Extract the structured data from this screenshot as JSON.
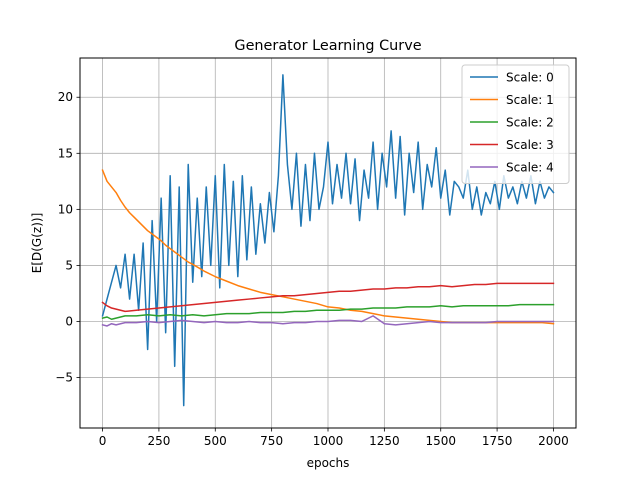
{
  "chart_data": {
    "type": "line",
    "title": "Generator Learning Curve",
    "xlabel": "epochs",
    "ylabel": "E[D(G(z))]",
    "xlim": [
      -100,
      2100
    ],
    "ylim": [
      -9.5,
      23.5
    ],
    "xticks": [
      0,
      250,
      500,
      750,
      1000,
      1250,
      1500,
      1750,
      2000
    ],
    "xtick_labels": [
      "0",
      "250",
      "500",
      "750",
      "1000",
      "1250",
      "1500",
      "1750",
      "2000"
    ],
    "yticks": [
      -5,
      0,
      5,
      10,
      15,
      20
    ],
    "ytick_labels": [
      "−5",
      "0",
      "5",
      "10",
      "15",
      "20"
    ],
    "grid": true,
    "legend": "top-right",
    "series": [
      {
        "name": "Scale: 0",
        "color": "#1f77b4",
        "x": [
          0,
          20,
          40,
          60,
          80,
          100,
          120,
          140,
          160,
          180,
          200,
          220,
          240,
          260,
          280,
          300,
          320,
          340,
          360,
          380,
          400,
          420,
          440,
          460,
          480,
          500,
          520,
          540,
          560,
          580,
          600,
          620,
          640,
          660,
          680,
          700,
          720,
          740,
          760,
          780,
          800,
          820,
          840,
          860,
          880,
          900,
          920,
          940,
          960,
          980,
          1000,
          1020,
          1040,
          1060,
          1080,
          1100,
          1120,
          1140,
          1160,
          1180,
          1200,
          1220,
          1240,
          1260,
          1280,
          1300,
          1320,
          1340,
          1360,
          1380,
          1400,
          1420,
          1440,
          1460,
          1480,
          1500,
          1520,
          1540,
          1560,
          1580,
          1600,
          1620,
          1640,
          1660,
          1680,
          1700,
          1720,
          1740,
          1760,
          1780,
          1800,
          1820,
          1840,
          1860,
          1880,
          1900,
          1920,
          1940,
          1960,
          1980,
          2000
        ],
        "y": [
          0.5,
          2.0,
          3.5,
          5.0,
          3.0,
          6.0,
          2.0,
          6.0,
          1.0,
          7.0,
          -2.5,
          9.0,
          0.0,
          11.0,
          -1.0,
          13.0,
          -4.0,
          12.0,
          -7.5,
          14.0,
          3.5,
          11.0,
          4.0,
          12.0,
          5.0,
          13.0,
          3.0,
          14.0,
          5.0,
          12.5,
          4.0,
          13.0,
          5.5,
          12.0,
          6.0,
          10.5,
          7.0,
          11.5,
          8.0,
          13.0,
          22.0,
          14.0,
          10.0,
          15.0,
          8.5,
          14.0,
          9.0,
          15.0,
          10.0,
          12.0,
          16.0,
          10.5,
          14.0,
          11.0,
          15.0,
          10.5,
          14.5,
          9.0,
          13.5,
          11.0,
          16.0,
          10.0,
          15.0,
          12.0,
          17.0,
          11.0,
          16.5,
          9.5,
          15.0,
          11.5,
          16.0,
          10.0,
          14.0,
          12.0,
          15.5,
          11.0,
          13.5,
          9.5,
          12.5,
          12.0,
          11.0,
          13.5,
          10.0,
          12.0,
          9.5,
          11.5,
          10.5,
          12.5,
          10.0,
          13.0,
          11.0,
          12.0,
          10.5,
          12.5,
          11.0,
          13.0,
          10.5,
          12.5,
          11.0,
          12.0,
          11.5
        ]
      },
      {
        "name": "Scale: 1",
        "color": "#ff7f0e",
        "x": [
          0,
          20,
          40,
          60,
          80,
          100,
          120,
          140,
          160,
          180,
          200,
          220,
          240,
          260,
          280,
          300,
          320,
          340,
          360,
          380,
          400,
          450,
          500,
          550,
          600,
          650,
          700,
          750,
          800,
          850,
          900,
          950,
          1000,
          1050,
          1100,
          1150,
          1200,
          1250,
          1300,
          1350,
          1400,
          1450,
          1500,
          1550,
          1600,
          1650,
          1700,
          1750,
          1800,
          1850,
          1900,
          1950,
          2000
        ],
        "y": [
          13.5,
          12.5,
          12.0,
          11.5,
          10.8,
          10.2,
          9.7,
          9.3,
          8.9,
          8.5,
          8.1,
          7.8,
          7.5,
          7.2,
          6.8,
          6.5,
          6.2,
          5.9,
          5.6,
          5.3,
          5.1,
          4.5,
          4.0,
          3.6,
          3.2,
          2.9,
          2.6,
          2.4,
          2.2,
          2.0,
          1.8,
          1.6,
          1.3,
          1.2,
          1.0,
          0.9,
          0.7,
          0.5,
          0.4,
          0.3,
          0.2,
          0.1,
          0.0,
          -0.1,
          -0.1,
          -0.1,
          -0.1,
          -0.1,
          -0.1,
          -0.1,
          -0.1,
          -0.1,
          -0.2
        ]
      },
      {
        "name": "Scale: 2",
        "color": "#2ca02c",
        "x": [
          0,
          20,
          40,
          60,
          80,
          100,
          150,
          200,
          250,
          300,
          350,
          400,
          450,
          500,
          550,
          600,
          650,
          700,
          750,
          800,
          850,
          900,
          950,
          1000,
          1050,
          1100,
          1150,
          1200,
          1250,
          1300,
          1350,
          1400,
          1450,
          1500,
          1550,
          1600,
          1650,
          1700,
          1750,
          1800,
          1850,
          1900,
          1950,
          2000
        ],
        "y": [
          0.3,
          0.4,
          0.2,
          0.3,
          0.4,
          0.5,
          0.5,
          0.6,
          0.5,
          0.6,
          0.5,
          0.6,
          0.5,
          0.6,
          0.7,
          0.7,
          0.7,
          0.8,
          0.8,
          0.8,
          0.9,
          0.9,
          1.0,
          1.0,
          1.0,
          1.1,
          1.1,
          1.2,
          1.2,
          1.2,
          1.3,
          1.3,
          1.3,
          1.4,
          1.3,
          1.4,
          1.4,
          1.4,
          1.4,
          1.4,
          1.5,
          1.5,
          1.5,
          1.5
        ]
      },
      {
        "name": "Scale: 3",
        "color": "#d62728",
        "x": [
          0,
          20,
          40,
          60,
          80,
          100,
          150,
          200,
          250,
          300,
          350,
          400,
          450,
          500,
          550,
          600,
          650,
          700,
          750,
          800,
          850,
          900,
          950,
          1000,
          1050,
          1100,
          1150,
          1200,
          1250,
          1300,
          1350,
          1400,
          1450,
          1500,
          1550,
          1600,
          1650,
          1700,
          1750,
          1800,
          1850,
          1900,
          1950,
          2000
        ],
        "y": [
          1.7,
          1.4,
          1.2,
          1.1,
          1.0,
          0.9,
          1.0,
          1.1,
          1.2,
          1.3,
          1.4,
          1.5,
          1.6,
          1.7,
          1.8,
          1.9,
          2.0,
          2.1,
          2.2,
          2.3,
          2.3,
          2.4,
          2.5,
          2.6,
          2.7,
          2.7,
          2.8,
          2.9,
          2.9,
          3.0,
          3.0,
          3.1,
          3.1,
          3.2,
          3.1,
          3.2,
          3.3,
          3.3,
          3.4,
          3.4,
          3.4,
          3.4,
          3.4,
          3.4
        ]
      },
      {
        "name": "Scale: 4",
        "color": "#9467bd",
        "x": [
          0,
          20,
          40,
          60,
          80,
          100,
          150,
          200,
          250,
          300,
          350,
          400,
          450,
          500,
          550,
          600,
          650,
          700,
          750,
          800,
          850,
          900,
          950,
          1000,
          1050,
          1100,
          1150,
          1200,
          1250,
          1300,
          1350,
          1400,
          1450,
          1500,
          1550,
          1600,
          1650,
          1700,
          1750,
          1800,
          1850,
          1900,
          1950,
          2000
        ],
        "y": [
          -0.3,
          -0.4,
          -0.2,
          -0.3,
          -0.2,
          -0.1,
          -0.1,
          0.0,
          -0.1,
          0.0,
          0.1,
          0.0,
          -0.1,
          0.0,
          -0.1,
          -0.1,
          0.0,
          -0.1,
          -0.1,
          -0.2,
          -0.1,
          -0.1,
          0.0,
          0.0,
          0.1,
          0.1,
          0.0,
          0.5,
          -0.2,
          -0.3,
          -0.2,
          -0.1,
          0.0,
          -0.1,
          -0.1,
          -0.1,
          -0.1,
          -0.1,
          0.0,
          0.0,
          0.0,
          0.0,
          0.0,
          0.0
        ]
      }
    ]
  }
}
